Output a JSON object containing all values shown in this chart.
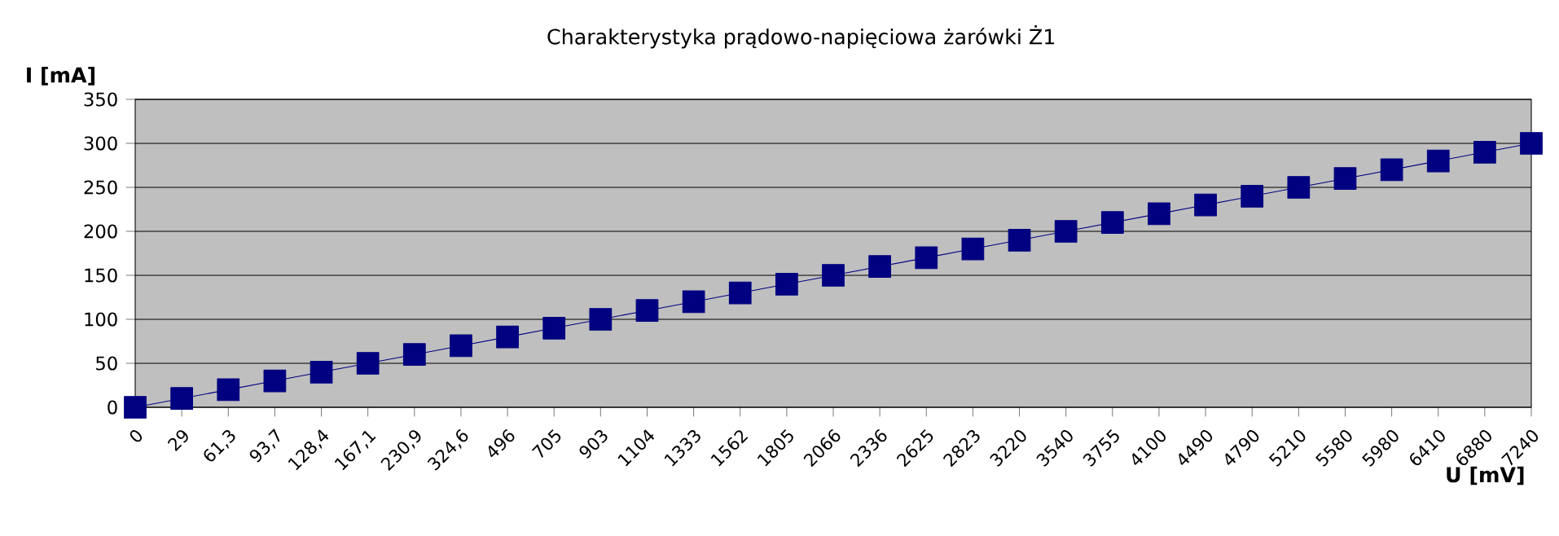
{
  "chart_data": {
    "type": "line",
    "title": "Charakterystyka prądowo-napięciowa żarówki Ż1",
    "xlabel": "U [mV]",
    "ylabel": "I [mA]",
    "categories": [
      "0",
      "29",
      "61,3",
      "93,7",
      "128,4",
      "167,1",
      "230,9",
      "324,6",
      "496",
      "705",
      "903",
      "1104",
      "1333",
      "1562",
      "1805",
      "2066",
      "2336",
      "2625",
      "2823",
      "3220",
      "3540",
      "3755",
      "4100",
      "4490",
      "4790",
      "5210",
      "5580",
      "5980",
      "6410",
      "6880",
      "7240"
    ],
    "values": [
      0,
      10,
      20,
      30,
      40,
      50,
      60,
      70,
      80,
      90,
      100,
      110,
      120,
      130,
      140,
      150,
      160,
      170,
      180,
      190,
      200,
      210,
      220,
      230,
      240,
      250,
      260,
      270,
      280,
      290,
      300
    ],
    "color": "#000080",
    "marker": "square",
    "line_style": "solid",
    "grid": "y",
    "ylim": [
      0,
      350
    ],
    "yticks": [
      0,
      50,
      100,
      150,
      200,
      250,
      300,
      350
    ]
  }
}
